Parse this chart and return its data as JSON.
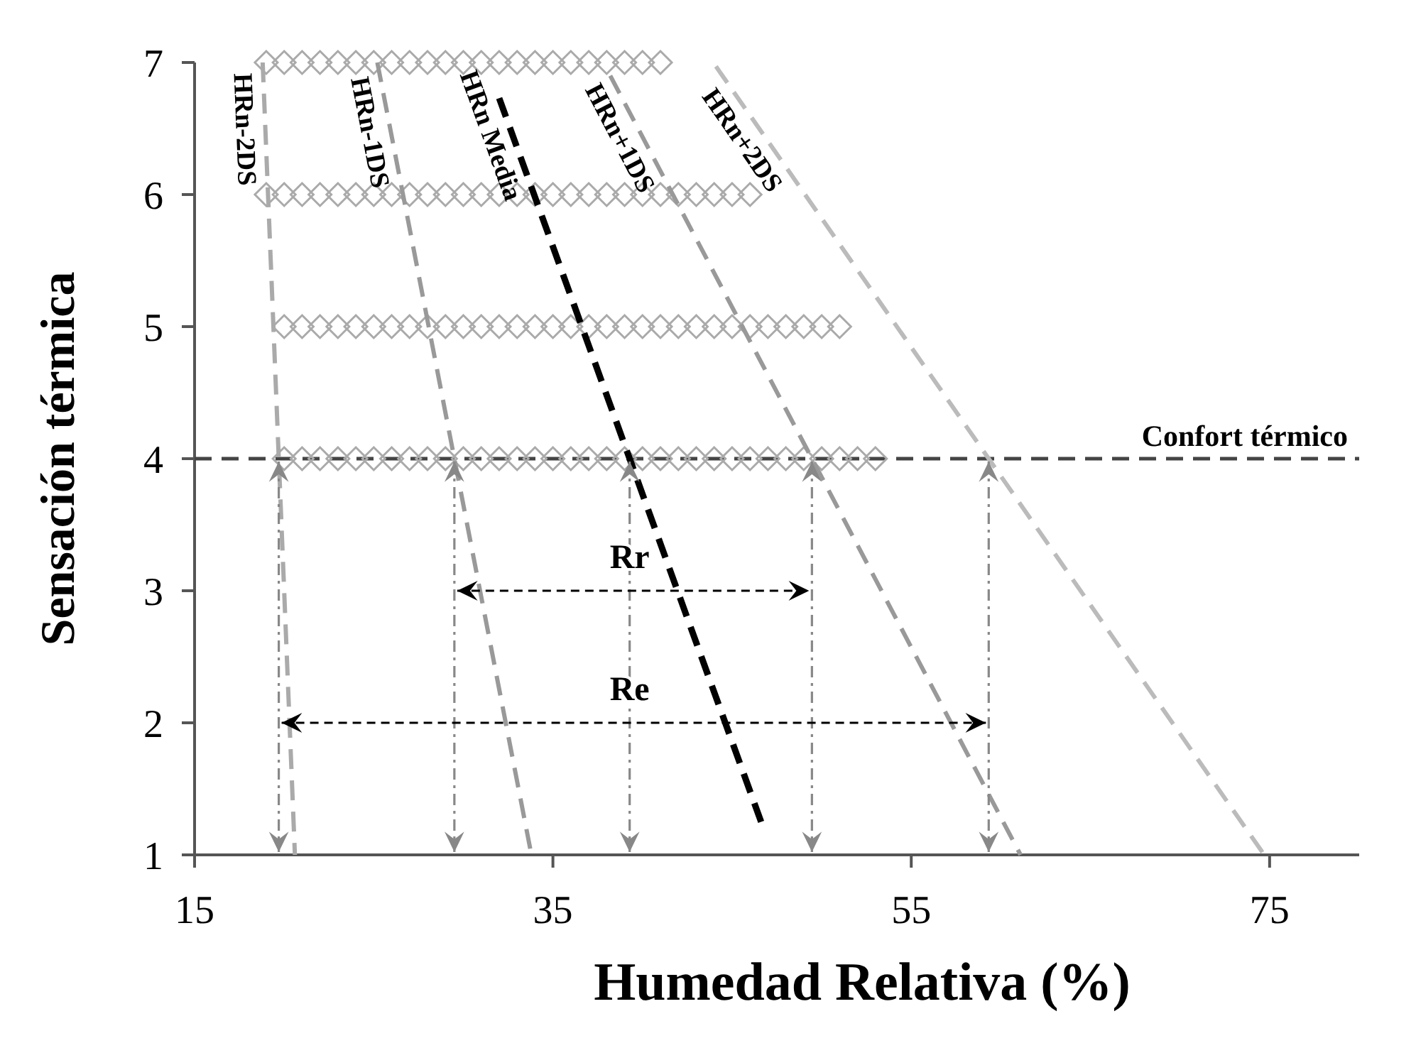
{
  "chart_data": {
    "type": "scatter",
    "xlabel": "Humedad Relativa (%)",
    "ylabel": "Sensación térmica",
    "xlim": [
      15,
      80
    ],
    "xticks": [
      15,
      35,
      55,
      75
    ],
    "ylim": [
      1,
      7
    ],
    "yticks": [
      1,
      2,
      3,
      4,
      5,
      6,
      7
    ],
    "grid": false,
    "legend": false,
    "series": [
      {
        "color": "#aaaaaa",
        "marker": "diamond",
        "x": [
          19,
          20,
          21,
          22,
          23,
          24,
          25,
          26,
          27,
          28,
          29,
          30,
          31,
          32,
          33,
          34,
          35,
          36,
          37,
          38,
          39,
          40,
          41,
          19,
          20,
          21,
          22,
          23,
          24,
          25,
          26,
          27,
          28,
          29,
          30,
          31,
          32,
          33,
          34,
          35,
          36,
          37,
          38,
          39,
          40,
          41,
          42,
          43,
          44,
          45,
          46,
          20,
          21,
          22,
          23,
          24,
          25,
          26,
          27,
          28,
          29,
          30,
          31,
          32,
          33,
          34,
          35,
          36,
          37,
          38,
          39,
          40,
          41,
          42,
          43,
          44,
          45,
          46,
          47,
          48,
          49,
          50,
          51,
          20,
          21,
          22,
          23,
          24,
          25,
          26,
          27,
          28,
          29,
          30,
          31,
          32,
          33,
          34,
          35,
          36,
          37,
          38,
          39,
          40,
          41,
          42,
          43,
          44,
          45,
          46,
          47,
          48,
          49,
          50,
          51,
          52,
          53
        ],
        "values": [
          7,
          7,
          7,
          7,
          7,
          7,
          7,
          7,
          7,
          7,
          7,
          7,
          7,
          7,
          7,
          7,
          7,
          7,
          7,
          7,
          7,
          7,
          7,
          6,
          6,
          6,
          6,
          6,
          6,
          6,
          6,
          6,
          6,
          6,
          6,
          6,
          6,
          6,
          6,
          6,
          6,
          6,
          6,
          6,
          6,
          6,
          6,
          6,
          6,
          6,
          6,
          5,
          5,
          5,
          5,
          5,
          5,
          5,
          5,
          5,
          5,
          5,
          5,
          5,
          5,
          5,
          5,
          5,
          5,
          5,
          5,
          5,
          5,
          5,
          5,
          5,
          5,
          5,
          5,
          5,
          5,
          5,
          5,
          4,
          4,
          4,
          4,
          4,
          4,
          4,
          4,
          4,
          4,
          4,
          4,
          4,
          4,
          4,
          4,
          4,
          4,
          4,
          4,
          4,
          4,
          4,
          4,
          4,
          4,
          4,
          4,
          4,
          4,
          4,
          4,
          4,
          4
        ]
      },
      {
        "type": "line",
        "name": "HRn-2DS",
        "color": "#aaaaaa",
        "line_style": "dashed",
        "x": [
          18.8,
          20.6
        ],
        "values": [
          7,
          1
        ]
      },
      {
        "type": "line",
        "name": "HRn-1DS",
        "color": "#999999",
        "line_style": "dashed",
        "x": [
          25.2,
          33.8
        ],
        "values": [
          7,
          1
        ]
      },
      {
        "type": "line",
        "name": "HRn Media",
        "color": "#000000",
        "line_style": "dashed",
        "x": [
          32,
          46.7
        ],
        "values": [
          6.73,
          1.22
        ]
      },
      {
        "type": "line",
        "name": "HRn+1DS",
        "color": "#999999",
        "line_style": "dashed",
        "x": [
          38.2,
          61.1
        ],
        "values": [
          6.9,
          1
        ]
      },
      {
        "type": "line",
        "name": "HRn+2DS",
        "color": "#bbbbbb",
        "line_style": "dashed",
        "x": [
          44.1,
          74.7
        ],
        "values": [
          6.97,
          1
        ]
      }
    ],
    "ref_lines": [
      {
        "axis": "y",
        "value": 4,
        "label": "Confort térmico",
        "color": "#444444",
        "line_style": "dashed"
      }
    ],
    "annotations": [
      "Rr",
      "Re"
    ]
  }
}
